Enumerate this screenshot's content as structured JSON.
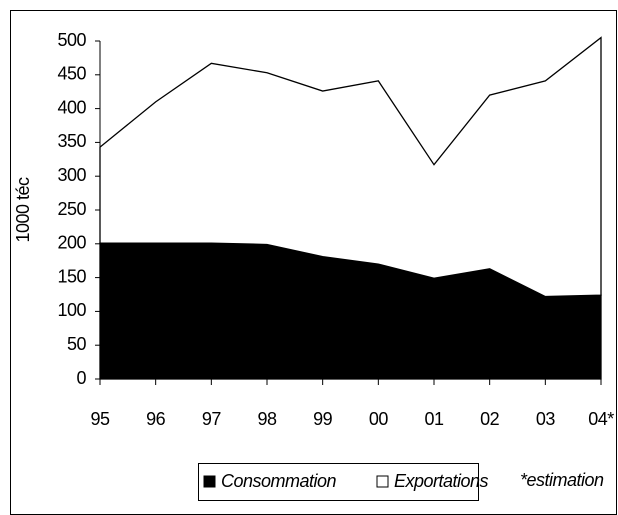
{
  "chart_data": {
    "type": "stacked_area",
    "ylabel": "1000 téc",
    "annotation": "*estimation",
    "categories": [
      "95",
      "96",
      "97",
      "98",
      "99",
      "00",
      "01",
      "02",
      "03",
      "04*"
    ],
    "series": [
      {
        "name": "Consommation",
        "color": "#000000",
        "values": [
          201,
          201,
          201,
          199,
          181,
          170,
          149,
          163,
          122,
          124
        ]
      },
      {
        "name": "Exportations",
        "color": "#ffffff",
        "values": [
          142,
          209,
          266,
          254,
          245,
          271,
          168,
          257,
          319,
          381
        ]
      }
    ],
    "ylim": [
      0,
      500
    ],
    "yticks": [
      0,
      50,
      100,
      150,
      200,
      250,
      300,
      350,
      400,
      450,
      500
    ]
  }
}
